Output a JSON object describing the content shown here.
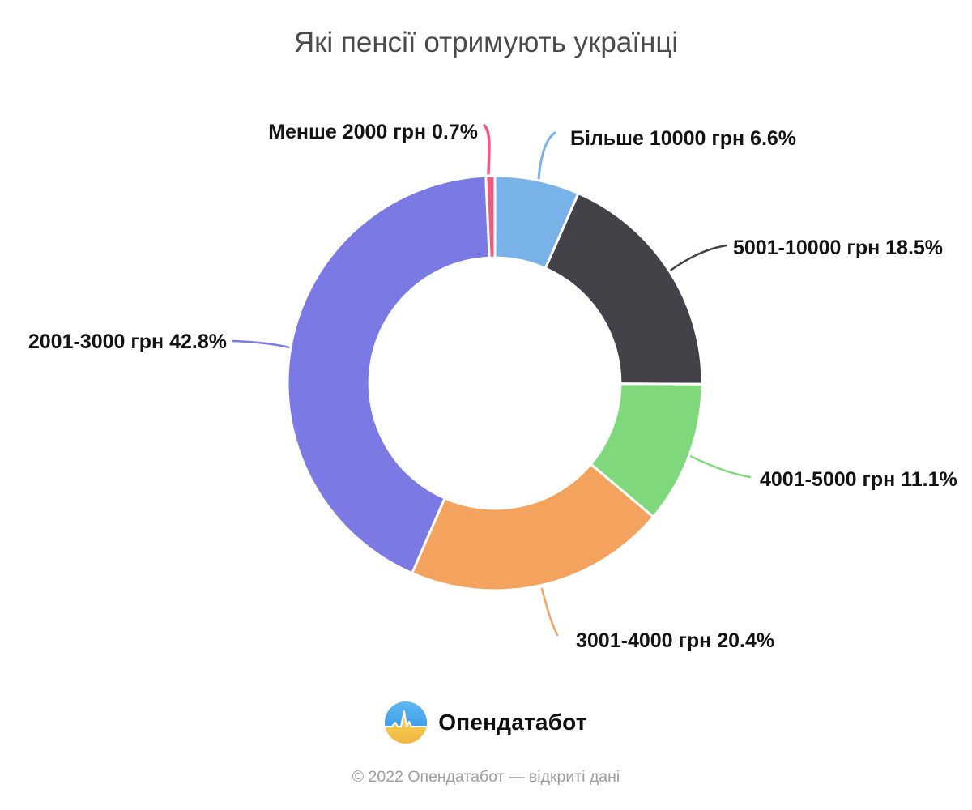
{
  "chart_data": {
    "type": "pie",
    "variant": "donut",
    "title": "Які пенсії отримують українці",
    "unit": "%",
    "direction": "clockwise",
    "start_angle_deg": 0,
    "inner_radius_ratio": 0.605,
    "legend_position": "callout-labels",
    "slices": [
      {
        "label": "Більше 10000 грн",
        "value": 6.6,
        "display": "Більше 10000 грн 6.6%",
        "color": "#79b2e8"
      },
      {
        "label": "5001-10000 грн",
        "value": 18.5,
        "display": "5001-10000 грн 18.5%",
        "color": "#434249"
      },
      {
        "label": "4001-5000 грн",
        "value": 11.1,
        "display": "4001-5000 грн 11.1%",
        "color": "#80d87d"
      },
      {
        "label": "3001-4000 грн",
        "value": 20.4,
        "display": "3001-4000 грн 20.4%",
        "color": "#f3a35e"
      },
      {
        "label": "2001-3000 грн",
        "value": 42.8,
        "display": "2001-3000 грн 42.8%",
        "color": "#7b79e3"
      },
      {
        "label": "Менше 2000 грн",
        "value": 0.7,
        "display": "Менше 2000 грн 0.7%",
        "color": "#f05a82"
      }
    ]
  },
  "logo": {
    "text": "Опендатабот",
    "icon": "opendatabot-pulse-circle-icon",
    "icon_colors": {
      "blue_top": "#57b1f0",
      "blue_bottom": "#3e9ee8",
      "yellow_top": "#ffe156",
      "yellow_bottom": "#f2b94a",
      "pulse_line": "#ffffff"
    }
  },
  "footer": {
    "copyright": "© 2022 Опендатабот — відкриті дані"
  }
}
